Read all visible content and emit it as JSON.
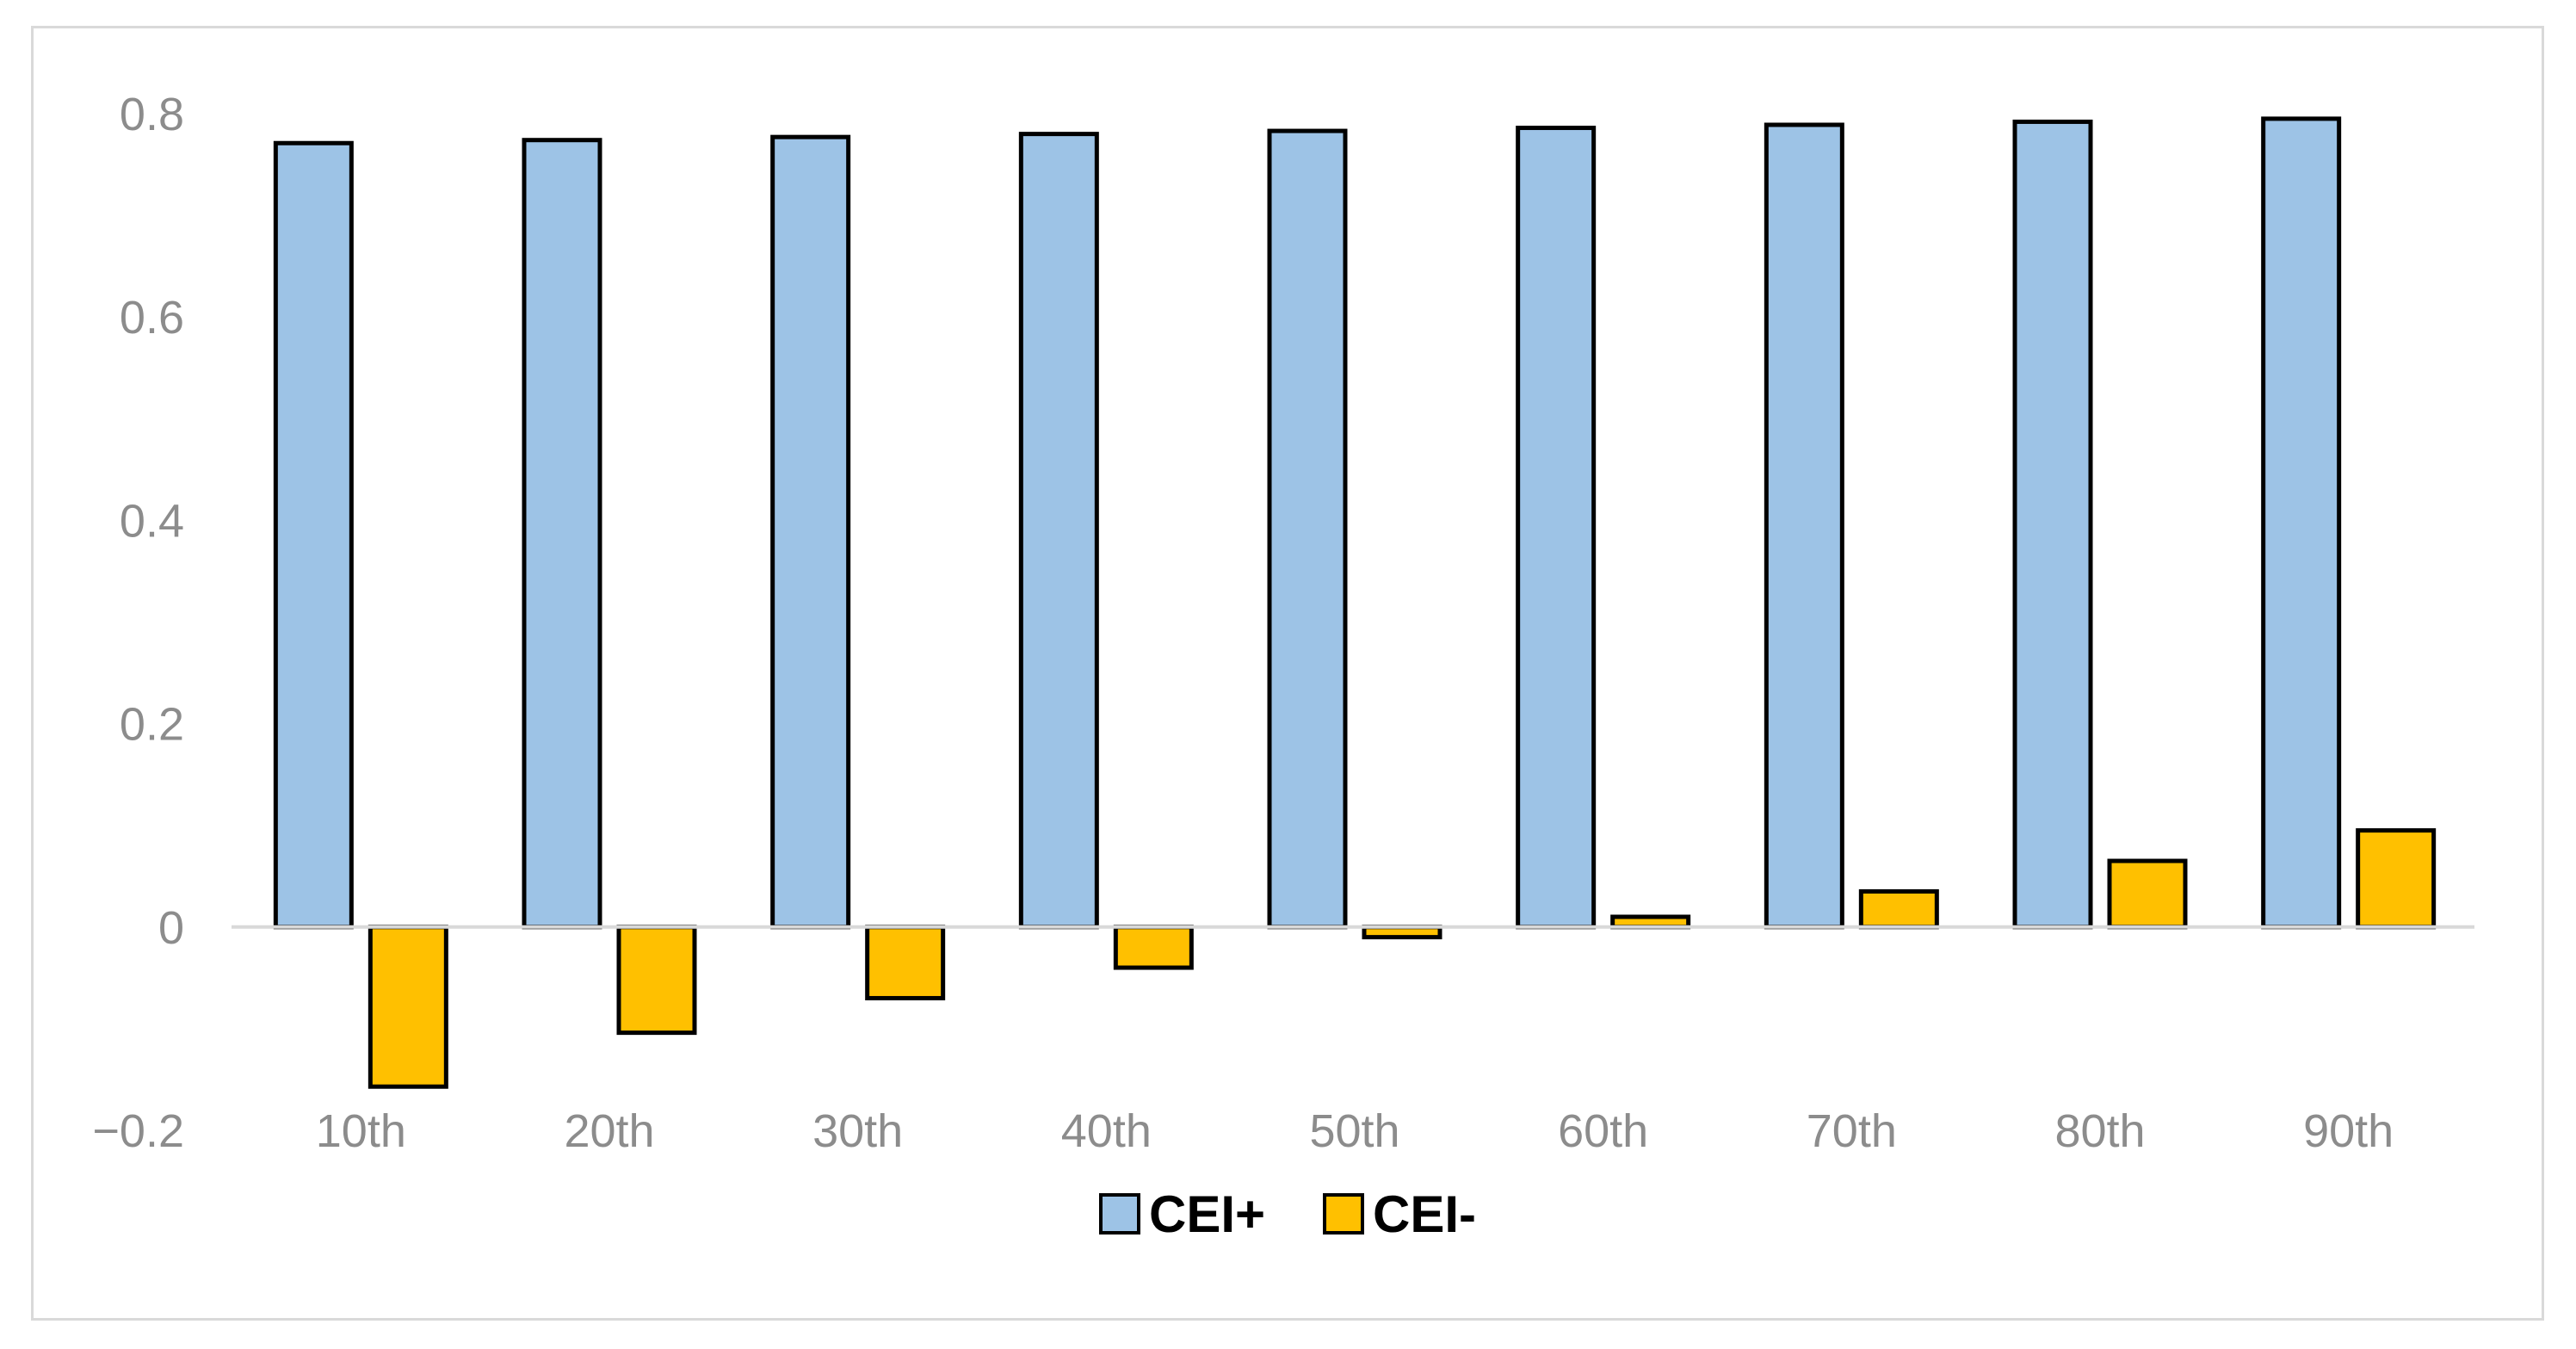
{
  "chart_data": {
    "type": "bar",
    "title": "",
    "xlabel": "",
    "ylabel": "",
    "categories": [
      "10th",
      "20th",
      "30th",
      "40th",
      "50th",
      "60th",
      "70th",
      "80th",
      "90th"
    ],
    "series": [
      {
        "name": "CEI+",
        "color": "#9dc3e6",
        "values": [
          0.771,
          0.774,
          0.777,
          0.78,
          0.783,
          0.786,
          0.789,
          0.792,
          0.795
        ]
      },
      {
        "name": "CEI-",
        "color": "#ffc000",
        "values": [
          -0.157,
          -0.104,
          -0.07,
          -0.04,
          -0.01,
          0.01,
          0.035,
          0.065,
          0.095
        ]
      }
    ],
    "ylim": [
      -0.2,
      0.8
    ],
    "yticks": [
      {
        "value": -0.2,
        "label": "−0.2"
      },
      {
        "value": 0,
        "label": "0"
      },
      {
        "value": 0.2,
        "label": "0.2"
      },
      {
        "value": 0.4,
        "label": "0.4"
      },
      {
        "value": 0.6,
        "label": "0.6"
      },
      {
        "value": 0.8,
        "label": "0.8"
      }
    ],
    "grid": false,
    "legend_position": "bottom",
    "bar_outline_color": "#000000",
    "axis_color": "#d9d9d9",
    "tick_color": "#8c8c8c"
  }
}
